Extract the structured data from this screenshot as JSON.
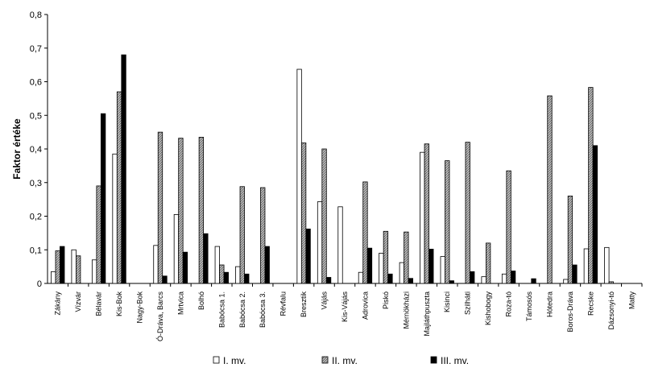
{
  "chart_data": {
    "type": "bar",
    "title": "",
    "xlabel": "",
    "ylabel": "Faktor értéke",
    "ylim": [
      0,
      0.8
    ],
    "yticks": [
      "0",
      "0,1",
      "0,2",
      "0,3",
      "0,4",
      "0,5",
      "0,6",
      "0,7",
      "0,8"
    ],
    "grid": false,
    "legend_position": "bottom",
    "categories": [
      "Zákány",
      "Vízvár",
      "Bélavár",
      "Kis-Bok",
      "Nagy-Bok",
      "Ó-Dráva, Barcs",
      "Mrtvica",
      "Bolhó",
      "Babócsa 1.",
      "Babócsa 2.",
      "Babócsa 3.",
      "Révfalu",
      "Bresztik",
      "Vájás",
      "Kis-Vájás",
      "Adrovica",
      "Piskó",
      "Mérnökházi",
      "Majláthpuszta",
      "Kisinci",
      "Szilháti",
      "Kishobogy",
      "Roza-tó",
      "Támosós",
      "Hótedra",
      "Boros-Dráva",
      "Recske",
      "Dázsonyi-tó",
      "Matty"
    ],
    "series": [
      {
        "name": "I. mv.",
        "color": "#ffffff",
        "pattern": "none",
        "values": [
          0.035,
          0.1,
          0.07,
          0.385,
          0.0,
          0.113,
          0.205,
          0.0,
          0.11,
          0.05,
          0.0,
          0.0,
          0.637,
          0.243,
          0.228,
          0.033,
          0.09,
          0.062,
          0.39,
          0.08,
          0.0,
          0.02,
          0.028,
          0.0,
          0.0,
          0.012,
          0.103,
          0.107,
          0.0
        ]
      },
      {
        "name": "II. mv.",
        "color": "#a0a0a0",
        "pattern": "crosshatch",
        "values": [
          0.097,
          0.082,
          0.29,
          0.57,
          0.0,
          0.45,
          0.432,
          0.435,
          0.055,
          0.288,
          0.285,
          0.0,
          0.418,
          0.4,
          0.0,
          0.302,
          0.155,
          0.153,
          0.415,
          0.365,
          0.42,
          0.12,
          0.335,
          0.0,
          0.558,
          0.26,
          0.583,
          0.005,
          0.0
        ]
      },
      {
        "name": "III. mv.",
        "color": "#000000",
        "pattern": "none",
        "values": [
          0.11,
          0.0,
          0.505,
          0.68,
          0.0,
          0.022,
          0.093,
          0.148,
          0.033,
          0.028,
          0.11,
          0.0,
          0.162,
          0.018,
          0.0,
          0.105,
          0.028,
          0.015,
          0.102,
          0.008,
          0.035,
          0.0,
          0.037,
          0.014,
          0.0,
          0.055,
          0.41,
          0.0,
          0.0
        ]
      }
    ]
  }
}
